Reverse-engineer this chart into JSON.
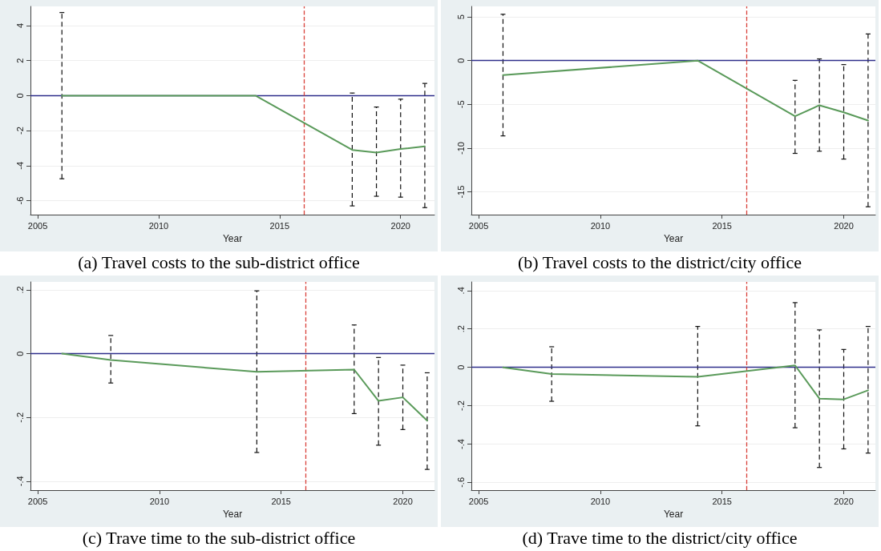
{
  "chart_data": [
    {
      "type": "line",
      "title": "(a) Travel costs to the sub-district office",
      "xlabel": "Year",
      "x": [
        2006,
        2014,
        2018,
        2019,
        2020,
        2021
      ],
      "series": [
        {
          "color": "#5a9a5a",
          "values": [
            0,
            0,
            -3.1,
            -3.25,
            -3.05,
            -2.9
          ],
          "errors": [
            [
              -4.75,
              4.75
            ],
            null,
            [
              -6.3,
              0.15
            ],
            [
              -5.75,
              -0.65
            ],
            [
              -5.8,
              -0.2
            ],
            [
              -6.4,
              0.7
            ]
          ]
        }
      ],
      "xlim": [
        2004.7,
        2021.4
      ],
      "xticks": [
        2005,
        2010,
        2015,
        2020
      ],
      "ylim": [
        -6.8,
        5.1
      ],
      "yticks": [
        -6,
        -4,
        -2,
        0,
        2,
        4
      ],
      "grid": "y",
      "marker": "none",
      "line_style": "solid",
      "ref_lines": [
        {
          "axis": "y",
          "value": 0,
          "color": "#2e2e8a",
          "line_style": "solid"
        },
        {
          "axis": "x",
          "value": 2016,
          "color": "#d9413a",
          "line_style": "dashed"
        }
      ]
    },
    {
      "type": "line",
      "title": "(b) Travel costs to the district/city office",
      "xlabel": "Year",
      "x": [
        2006,
        2014,
        2018,
        2019,
        2020,
        2021
      ],
      "series": [
        {
          "color": "#5a9a5a",
          "values": [
            -1.65,
            0,
            -6.35,
            -5.1,
            -5.9,
            -6.85
          ],
          "errors": [
            [
              -8.6,
              5.3
            ],
            null,
            [
              -10.6,
              -2.25
            ],
            [
              -10.35,
              0.2
            ],
            [
              -11.25,
              -0.45
            ],
            [
              -16.7,
              3.05
            ]
          ]
        }
      ],
      "xlim": [
        2004.7,
        2021.3
      ],
      "xticks": [
        2005,
        2010,
        2015,
        2020
      ],
      "ylim": [
        -17.6,
        6.2
      ],
      "yticks": [
        -15,
        -10,
        -5,
        0,
        5
      ],
      "grid": "y",
      "marker": "none",
      "line_style": "solid",
      "ref_lines": [
        {
          "axis": "y",
          "value": 0,
          "color": "#2e2e8a",
          "line_style": "solid"
        },
        {
          "axis": "x",
          "value": 2016,
          "color": "#d9413a",
          "line_style": "dashed"
        }
      ]
    },
    {
      "type": "line",
      "title": "(c) Trave time to the sub-district office",
      "xlabel": "Year",
      "x": [
        2006,
        2008,
        2014,
        2018,
        2019,
        2020,
        2021
      ],
      "series": [
        {
          "color": "#5a9a5a",
          "values": [
            0,
            -0.02,
            -0.057,
            -0.05,
            -0.148,
            -0.137,
            -0.21
          ],
          "errors": [
            null,
            [
              -0.092,
              0.057
            ],
            [
              -0.31,
              0.197
            ],
            [
              -0.188,
              0.09
            ],
            [
              -0.287,
              -0.012
            ],
            [
              -0.238,
              -0.036
            ],
            [
              -0.363,
              -0.06
            ]
          ]
        }
      ],
      "xlim": [
        2004.7,
        2021.3
      ],
      "xticks": [
        2005,
        2010,
        2015,
        2020
      ],
      "ylim": [
        -0.428,
        0.225
      ],
      "yticks": [
        {
          "value": -0.4,
          "label": "-.4"
        },
        {
          "value": -0.2,
          "label": "-.2"
        },
        0,
        {
          "value": 0.2,
          "label": ".2"
        }
      ],
      "grid": "y",
      "marker": "none",
      "line_style": "solid",
      "ref_lines": [
        {
          "axis": "y",
          "value": 0,
          "color": "#2e2e8a",
          "line_style": "solid"
        },
        {
          "axis": "x",
          "value": 2016,
          "color": "#d9413a",
          "line_style": "dashed"
        }
      ]
    },
    {
      "type": "line",
      "title": "(d) Trave time to the district/city office",
      "xlabel": "Year",
      "x": [
        2006,
        2008,
        2014,
        2018,
        2019,
        2020,
        2021
      ],
      "series": [
        {
          "color": "#5a9a5a",
          "values": [
            0,
            -0.035,
            -0.05,
            0.01,
            -0.163,
            -0.167,
            -0.12
          ],
          "errors": [
            null,
            [
              -0.177,
              0.107
            ],
            [
              -0.305,
              0.213
            ],
            [
              -0.315,
              0.337
            ],
            [
              -0.522,
              0.195
            ],
            [
              -0.425,
              0.093
            ],
            [
              -0.447,
              0.213
            ]
          ]
        }
      ],
      "xlim": [
        2004.7,
        2021.3
      ],
      "xticks": [
        2005,
        2010,
        2015,
        2020
      ],
      "ylim": [
        -0.64,
        0.445
      ],
      "yticks": [
        {
          "value": -0.6,
          "label": "-.6"
        },
        {
          "value": -0.4,
          "label": "-.4"
        },
        {
          "value": -0.2,
          "label": "-.2"
        },
        0,
        {
          "value": 0.2,
          "label": ".2"
        },
        {
          "value": 0.4,
          "label": ".4"
        }
      ],
      "grid": "y",
      "marker": "none",
      "line_style": "solid",
      "ref_lines": [
        {
          "axis": "y",
          "value": 0,
          "color": "#2e2e8a",
          "line_style": "solid"
        },
        {
          "axis": "x",
          "value": 2016,
          "color": "#d9413a",
          "line_style": "dashed"
        }
      ]
    }
  ]
}
